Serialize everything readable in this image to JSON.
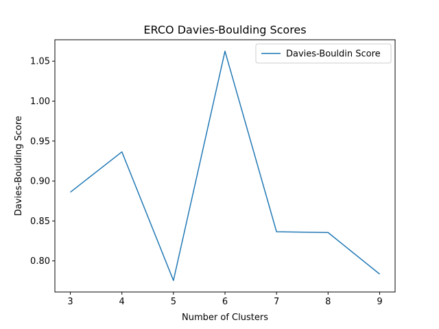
{
  "chart_data": {
    "type": "line",
    "title": "ERCO Davies-Boulding Scores",
    "xlabel": "Number of Clusters",
    "ylabel": "Davies-Boulding Score",
    "x": [
      3,
      4,
      5,
      6,
      7,
      8,
      9
    ],
    "series": [
      {
        "name": "Davies-Bouldin Score",
        "color": "#1f77b4",
        "values": [
          0.886,
          0.9365,
          0.7755,
          1.0625,
          0.8365,
          0.8355,
          0.7835
        ]
      }
    ],
    "xlim": [
      2.7,
      9.3
    ],
    "ylim": [
      0.7611,
      1.0768
    ],
    "x_ticks": [
      "3",
      "4",
      "5",
      "6",
      "7",
      "8",
      "9"
    ],
    "y_ticks": [
      "0.80",
      "0.85",
      "0.90",
      "0.95",
      "1.00",
      "1.05"
    ],
    "grid": false,
    "legend_position": "top-right"
  }
}
